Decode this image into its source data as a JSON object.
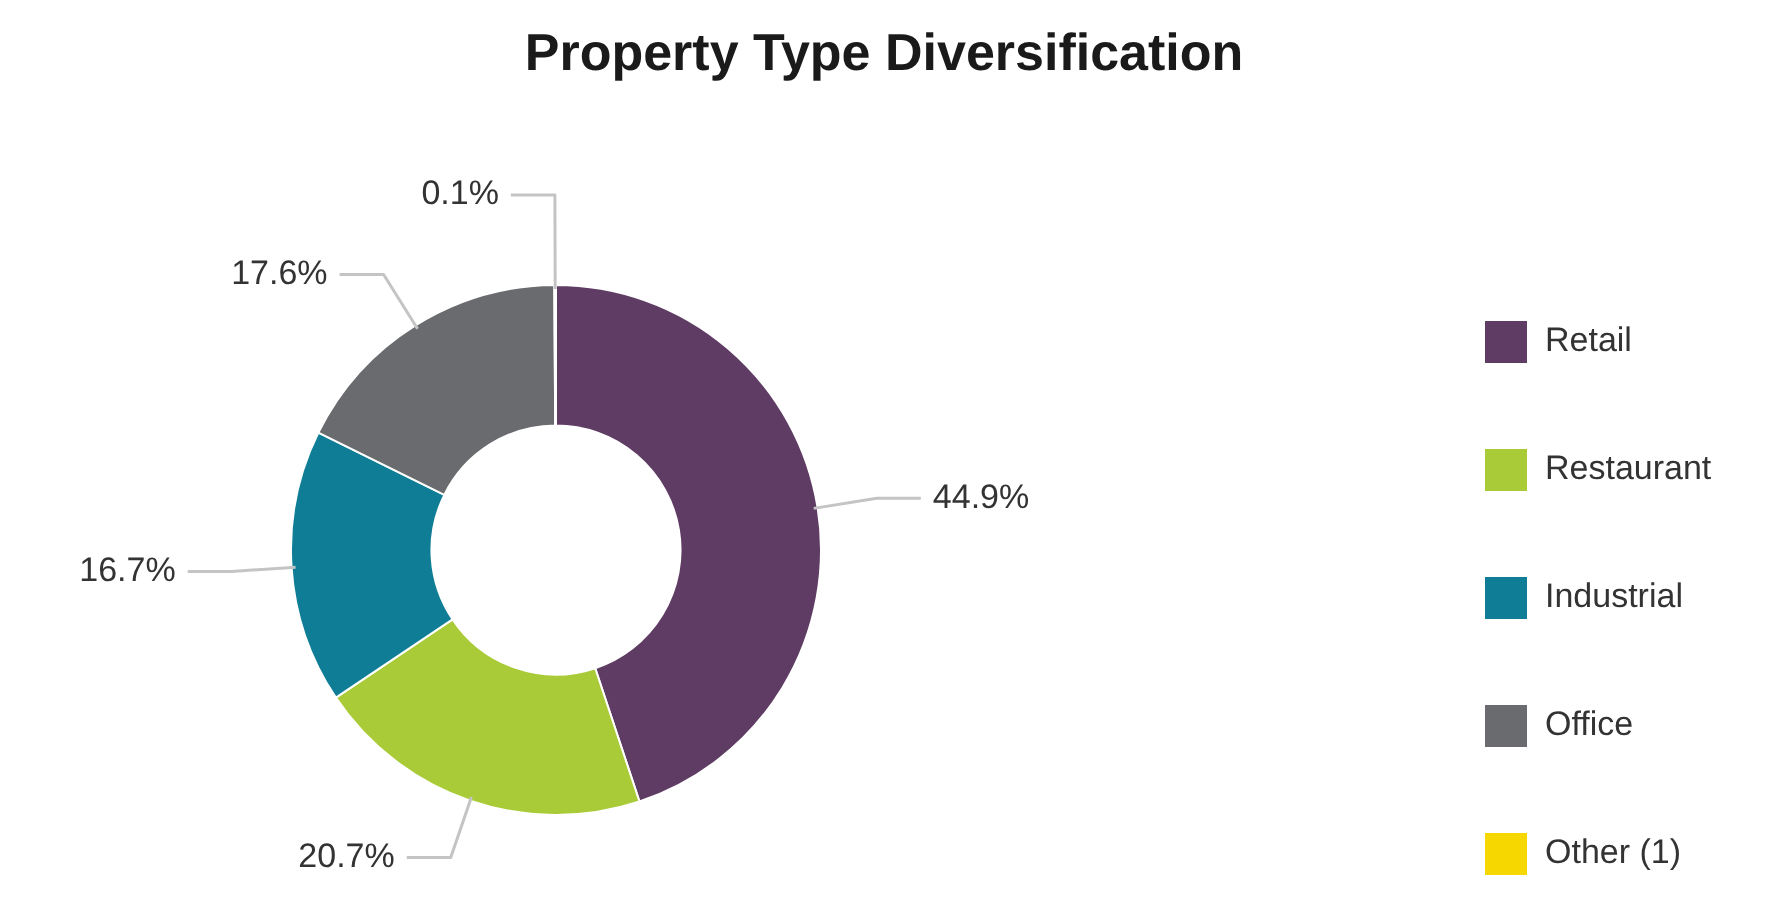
{
  "chart_data": {
    "type": "donut",
    "title": "Property Type Diversification",
    "categories": [
      "Retail",
      "Restaurant",
      "Industrial",
      "Office",
      "Other (1)"
    ],
    "values": [
      44.9,
      20.7,
      16.7,
      17.6,
      0.1
    ],
    "value_labels": [
      "44.9%",
      "20.7%",
      "16.7%",
      "17.6%",
      "0.1%"
    ],
    "colors": [
      "#5f3c63",
      "#a9cb38",
      "#0e7d95",
      "#6a6b6e",
      "#f7d700"
    ],
    "legend": "right"
  }
}
